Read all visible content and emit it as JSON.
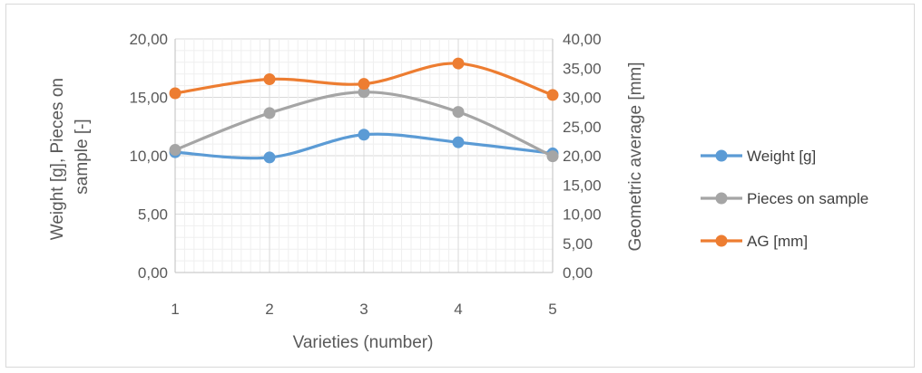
{
  "chart_data": {
    "type": "line",
    "xlabel": "Varieties (number)",
    "ylabel_left": [
      "Weight [g],  Pieces on",
      "sample [-]"
    ],
    "ylabel_right": "Geometric average [mm]",
    "categories": [
      "1",
      "2",
      "3",
      "4",
      "5"
    ],
    "ylim_left": [
      0,
      20
    ],
    "ylim_right": [
      0,
      40
    ],
    "yticks_left": [
      "0,00",
      "5,00",
      "10,00",
      "15,00",
      "20,00"
    ],
    "yticks_right": [
      "0,00",
      "5,00",
      "10,00",
      "15,00",
      "20,00",
      "25,00",
      "30,00",
      "35,00",
      "40,00"
    ],
    "grid": true,
    "smooth": true,
    "legend_position": "right",
    "series": [
      {
        "name": "Weight [g]",
        "axis": "left",
        "color": "#5b9bd5",
        "values": [
          10.3,
          9.85,
          11.8,
          11.15,
          10.2
        ]
      },
      {
        "name": "Pieces on sample",
        "axis": "left",
        "color": "#a5a5a5",
        "values": [
          10.5,
          13.65,
          15.45,
          13.75,
          9.95
        ]
      },
      {
        "name": "AG  [mm]",
        "axis": "right",
        "color": "#ed7d31",
        "values": [
          30.7,
          33.1,
          32.3,
          35.8,
          30.4
        ]
      }
    ]
  }
}
